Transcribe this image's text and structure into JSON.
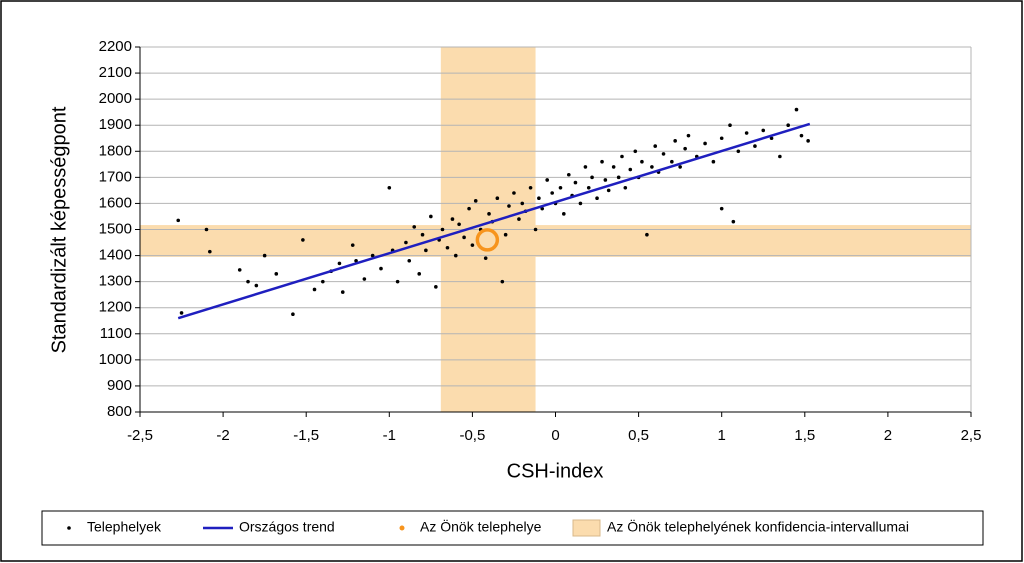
{
  "chart_data": {
    "type": "scatter",
    "x_label": "CSH-index",
    "y_label": "Standardizált képességpont",
    "xlim": [
      -2.5,
      2.5
    ],
    "ylim": [
      800,
      2200
    ],
    "xticks": [
      {
        "value": -2.5,
        "label": "-2,5"
      },
      {
        "value": -2,
        "label": "-2"
      },
      {
        "value": -1.5,
        "label": "-1,5"
      },
      {
        "value": -1,
        "label": "-1"
      },
      {
        "value": -0.5,
        "label": "-0,5"
      },
      0,
      {
        "value": 0.5,
        "label": "0,5"
      },
      1,
      {
        "value": 1.5,
        "label": "1,5"
      },
      2,
      {
        "value": 2.5,
        "label": "2,5"
      }
    ],
    "yticks": [
      800,
      900,
      1000,
      1100,
      1200,
      1300,
      1400,
      1500,
      1600,
      1700,
      1800,
      1900,
      2000,
      2100,
      2200
    ],
    "grid": true,
    "series": [
      {
        "name": "Telephelyek",
        "color": "#000000",
        "x": [
          -2.27,
          -2.25,
          -2.1,
          -2.08,
          -1.9,
          -1.85,
          -1.8,
          -1.75,
          -1.68,
          -1.58,
          -1.52,
          -1.45,
          -1.4,
          -1.35,
          -1.3,
          -1.28,
          -1.22,
          -1.2,
          -1.15,
          -1.1,
          -1.05,
          -1.0,
          -0.98,
          -0.95,
          -0.9,
          -0.88,
          -0.85,
          -0.82,
          -0.8,
          -0.78,
          -0.75,
          -0.72,
          -0.7,
          -0.68,
          -0.65,
          -0.62,
          -0.6,
          -0.58,
          -0.55,
          -0.52,
          -0.5,
          -0.48,
          -0.45,
          -0.42,
          -0.4,
          -0.38,
          -0.35,
          -0.32,
          -0.3,
          -0.28,
          -0.25,
          -0.22,
          -0.2,
          -0.18,
          -0.15,
          -0.12,
          -0.1,
          -0.08,
          -0.05,
          -0.02,
          0,
          0.03,
          0.05,
          0.08,
          0.1,
          0.12,
          0.15,
          0.18,
          0.2,
          0.22,
          0.25,
          0.28,
          0.3,
          0.32,
          0.35,
          0.38,
          0.4,
          0.42,
          0.45,
          0.48,
          0.5,
          0.52,
          0.55,
          0.58,
          0.6,
          0.62,
          0.65,
          0.7,
          0.72,
          0.75,
          0.78,
          0.8,
          0.85,
          0.9,
          0.95,
          1.0,
          1.0,
          1.05,
          1.07,
          1.1,
          1.15,
          1.2,
          1.25,
          1.3,
          1.35,
          1.4,
          1.45,
          1.48,
          1.52
        ],
        "values": [
          1535,
          1180,
          1500,
          1415,
          1345,
          1300,
          1285,
          1400,
          1330,
          1175,
          1460,
          1270,
          1300,
          1340,
          1370,
          1260,
          1440,
          1380,
          1310,
          1400,
          1350,
          1660,
          1420,
          1300,
          1450,
          1380,
          1510,
          1330,
          1480,
          1420,
          1550,
          1280,
          1460,
          1500,
          1430,
          1540,
          1400,
          1520,
          1470,
          1580,
          1440,
          1610,
          1500,
          1390,
          1560,
          1530,
          1620,
          1300,
          1480,
          1590,
          1640,
          1540,
          1600,
          1570,
          1660,
          1500,
          1620,
          1580,
          1690,
          1640,
          1600,
          1660,
          1560,
          1710,
          1630,
          1680,
          1600,
          1740,
          1660,
          1700,
          1620,
          1760,
          1690,
          1650,
          1740,
          1700,
          1780,
          1660,
          1730,
          1800,
          1700,
          1760,
          1480,
          1740,
          1820,
          1720,
          1790,
          1760,
          1840,
          1740,
          1810,
          1860,
          1780,
          1830,
          1760,
          1850,
          1580,
          1900,
          1530,
          1800,
          1870,
          1820,
          1880,
          1850,
          1780,
          1900,
          1960,
          1860,
          1840
        ]
      },
      {
        "name": "Országos trend",
        "type": "line",
        "color": "#1f1fbf",
        "x": [
          -2.27,
          1.53
        ],
        "values": [
          1160,
          1905
        ]
      },
      {
        "name": "Az Önök telephelye",
        "color": "#f7941d",
        "x": [
          -0.41
        ],
        "values": [
          1460
        ]
      }
    ],
    "confidence_band": {
      "name": "Az Önök telephelyének konfidencia-intervallumai",
      "color": "#fbdcae",
      "x": [
        -0.69,
        -0.12
      ],
      "y": [
        1395,
        1517
      ]
    }
  }
}
